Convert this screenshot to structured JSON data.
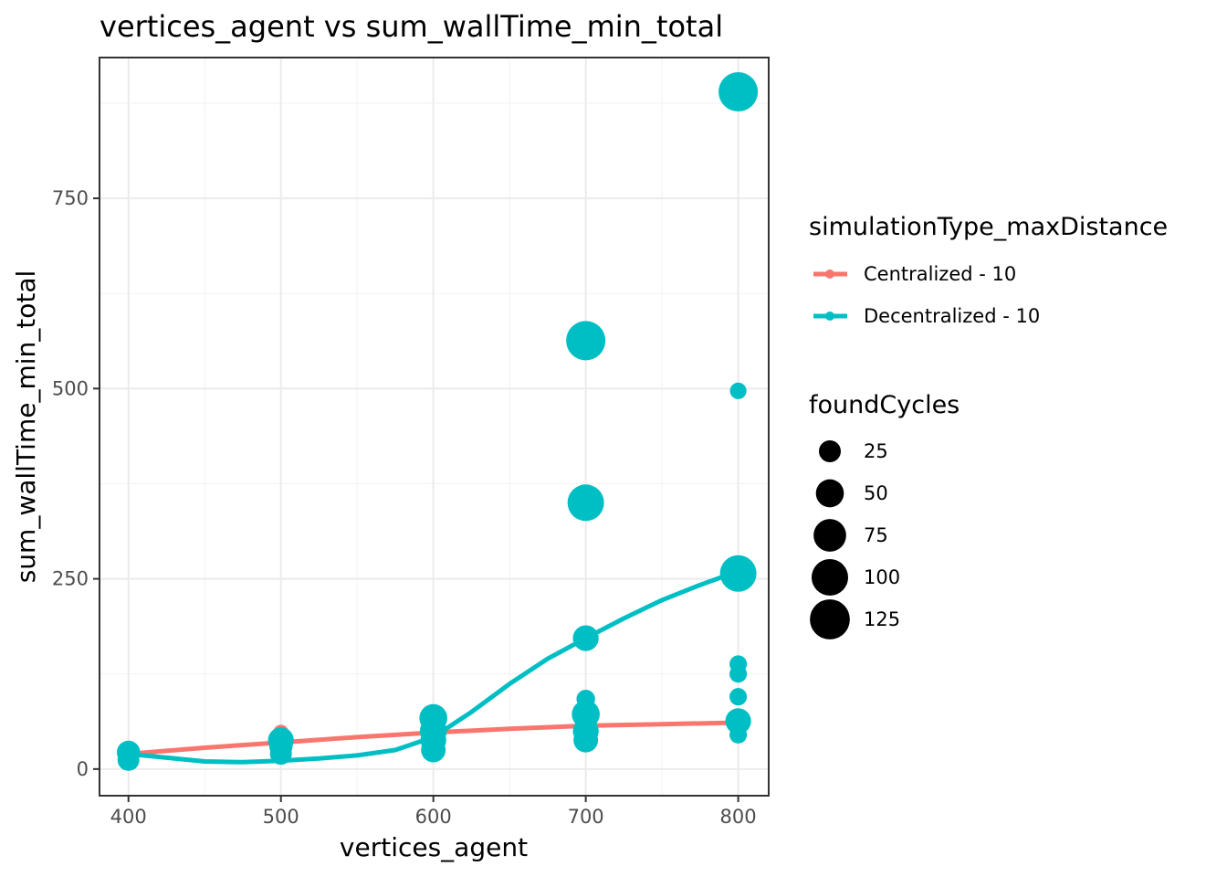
{
  "chart_data": {
    "type": "scatter",
    "title": "vertices_agent  vs  sum_wallTime_min_total",
    "xlabel": "vertices_agent",
    "ylabel": "sum_wallTime_min_total",
    "xlim": [
      381,
      820
    ],
    "ylim": [
      -35,
      935
    ],
    "xticks": [
      400,
      500,
      600,
      700,
      800
    ],
    "yticks": [
      0,
      250,
      500,
      750
    ],
    "grid": true,
    "colors": {
      "Centralized - 10": "#F8766D",
      "Decentralized - 10": "#00BFC4"
    },
    "color_legend": {
      "title": "simulationType_maxDistance",
      "entries": [
        "Centralized - 10",
        "Decentralized - 10"
      ]
    },
    "size_legend": {
      "title": "foundCycles",
      "entries": [
        25,
        50,
        75,
        100,
        125
      ]
    },
    "series": [
      {
        "name": "Centralized - 10",
        "points": [
          {
            "x": 400,
            "y": 18,
            "size": 12
          },
          {
            "x": 400,
            "y": 22,
            "size": 12
          },
          {
            "x": 500,
            "y": 48,
            "size": 8
          },
          {
            "x": 500,
            "y": 35,
            "size": 12
          },
          {
            "x": 500,
            "y": 25,
            "size": 10
          },
          {
            "x": 600,
            "y": 55,
            "size": 8
          },
          {
            "x": 600,
            "y": 42,
            "size": 10
          },
          {
            "x": 700,
            "y": 58,
            "size": 10
          },
          {
            "x": 700,
            "y": 48,
            "size": 10
          },
          {
            "x": 800,
            "y": 68,
            "size": 6
          },
          {
            "x": 800,
            "y": 58,
            "size": 6
          }
        ],
        "smooth": [
          {
            "x": 400,
            "y": 20
          },
          {
            "x": 450,
            "y": 28
          },
          {
            "x": 500,
            "y": 35
          },
          {
            "x": 550,
            "y": 42
          },
          {
            "x": 600,
            "y": 48
          },
          {
            "x": 650,
            "y": 53
          },
          {
            "x": 700,
            "y": 57
          },
          {
            "x": 750,
            "y": 59
          },
          {
            "x": 800,
            "y": 61
          }
        ]
      },
      {
        "name": "Decentralized - 10",
        "points": [
          {
            "x": 400,
            "y": 22,
            "size": 30
          },
          {
            "x": 400,
            "y": 12,
            "size": 25
          },
          {
            "x": 500,
            "y": 38,
            "size": 40
          },
          {
            "x": 500,
            "y": 30,
            "size": 30
          },
          {
            "x": 500,
            "y": 20,
            "size": 25
          },
          {
            "x": 600,
            "y": 67,
            "size": 50
          },
          {
            "x": 600,
            "y": 50,
            "size": 45
          },
          {
            "x": 600,
            "y": 38,
            "size": 40
          },
          {
            "x": 600,
            "y": 25,
            "size": 35
          },
          {
            "x": 700,
            "y": 563,
            "size": 120
          },
          {
            "x": 700,
            "y": 350,
            "size": 100
          },
          {
            "x": 700,
            "y": 172,
            "size": 40
          },
          {
            "x": 700,
            "y": 92,
            "size": 15
          },
          {
            "x": 700,
            "y": 72,
            "size": 50
          },
          {
            "x": 700,
            "y": 50,
            "size": 40
          },
          {
            "x": 700,
            "y": 38,
            "size": 35
          },
          {
            "x": 800,
            "y": 890,
            "size": 120
          },
          {
            "x": 800,
            "y": 497,
            "size": 10
          },
          {
            "x": 800,
            "y": 257,
            "size": 100
          },
          {
            "x": 800,
            "y": 138,
            "size": 12
          },
          {
            "x": 800,
            "y": 125,
            "size": 12
          },
          {
            "x": 800,
            "y": 95,
            "size": 12
          },
          {
            "x": 800,
            "y": 63,
            "size": 40
          },
          {
            "x": 800,
            "y": 45,
            "size": 12
          }
        ],
        "smooth": [
          {
            "x": 400,
            "y": 20
          },
          {
            "x": 425,
            "y": 15
          },
          {
            "x": 450,
            "y": 10
          },
          {
            "x": 475,
            "y": 9
          },
          {
            "x": 500,
            "y": 11
          },
          {
            "x": 525,
            "y": 14
          },
          {
            "x": 550,
            "y": 18
          },
          {
            "x": 575,
            "y": 25
          },
          {
            "x": 600,
            "y": 42
          },
          {
            "x": 625,
            "y": 75
          },
          {
            "x": 650,
            "y": 112
          },
          {
            "x": 675,
            "y": 145
          },
          {
            "x": 700,
            "y": 172
          },
          {
            "x": 725,
            "y": 198
          },
          {
            "x": 750,
            "y": 222
          },
          {
            "x": 775,
            "y": 242
          },
          {
            "x": 800,
            "y": 260
          }
        ]
      }
    ]
  }
}
